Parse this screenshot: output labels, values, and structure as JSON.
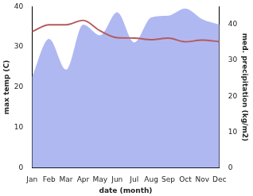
{
  "chart_data": {
    "type": "line",
    "categories": [
      "Jan",
      "Feb",
      "Mar",
      "Apr",
      "May",
      "Jun",
      "Jul",
      "Aug",
      "Sep",
      "Oct",
      "Nov",
      "Dec"
    ],
    "x_label": "date (month)",
    "y_label": "max temp (C)",
    "y2_label": "med. precipitation (kg/m2)",
    "ylim": [
      0,
      40
    ],
    "yticks": [
      0,
      10,
      20,
      30,
      40
    ],
    "y2lim": [
      0,
      45
    ],
    "y2ticks": [
      0,
      10,
      20,
      30,
      40
    ],
    "grid": false,
    "series": [
      {
        "type": "line",
        "axis": "y",
        "color": "#b55a5a",
        "values": [
          33.8,
          35.5,
          35.5,
          36.6,
          34.0,
          32.3,
          32.2,
          31.8,
          32.2,
          31.3,
          31.7,
          31.3
        ]
      },
      {
        "type": "area",
        "axis": "y2",
        "color": "#b0b8f2",
        "values": [
          25.4,
          36.0,
          27.4,
          40.0,
          37.0,
          43.4,
          35.0,
          42.0,
          42.5,
          44.5,
          41.5,
          40.0
        ]
      }
    ]
  }
}
